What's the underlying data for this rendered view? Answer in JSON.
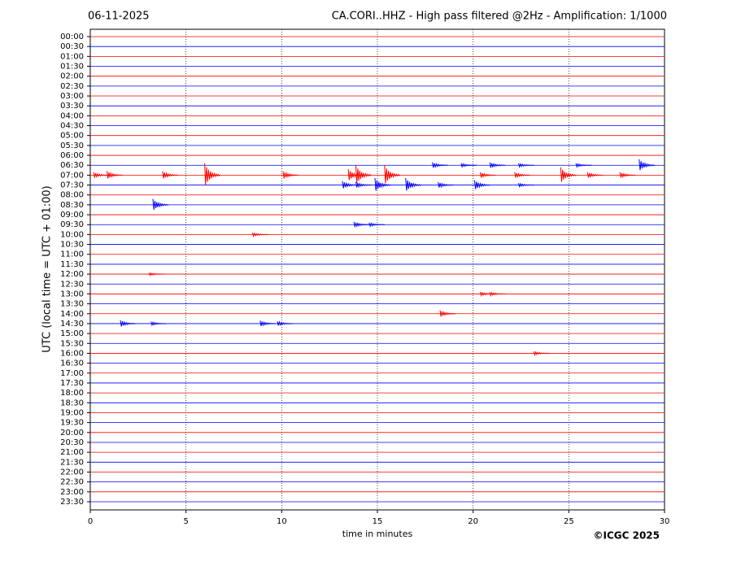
{
  "chart_data": {
    "type": "helicorder",
    "date": "06-11-2025",
    "title": "CA.CORI..HHZ - High pass filtered @2Hz - Amplification: 1/1000",
    "xlabel": "time in minutes",
    "ylabel": "UTC (local time = UTC + 01:00)",
    "copyright": "©ICGC 2025",
    "xlim": [
      0,
      30
    ],
    "xticks": [
      0,
      5,
      10,
      15,
      20,
      25,
      30
    ],
    "grid": true,
    "colors": [
      "#ff0000",
      "#0000ff"
    ],
    "categories": [
      "00:00",
      "00:30",
      "01:00",
      "01:30",
      "02:00",
      "02:30",
      "03:00",
      "03:30",
      "04:00",
      "04:30",
      "05:00",
      "05:30",
      "06:00",
      "06:30",
      "07:00",
      "07:30",
      "08:00",
      "08:30",
      "09:00",
      "09:30",
      "10:00",
      "10:30",
      "11:00",
      "11:30",
      "12:00",
      "12:30",
      "13:00",
      "13:30",
      "14:00",
      "14:30",
      "15:00",
      "15:30",
      "16:00",
      "16:30",
      "17:00",
      "17:30",
      "18:00",
      "18:30",
      "19:00",
      "19:30",
      "20:00",
      "20:30",
      "21:00",
      "21:30",
      "22:00",
      "22:30",
      "23:00",
      "23:30"
    ],
    "bursts": [
      {
        "row": 13,
        "x": 18,
        "amplitude": 0.3
      },
      {
        "row": 13,
        "x": 19.5,
        "amplitude": 0.2
      },
      {
        "row": 13,
        "x": 21,
        "amplitude": 0.3
      },
      {
        "row": 13,
        "x": 22.5,
        "amplitude": 0.2
      },
      {
        "row": 13,
        "x": 25.5,
        "amplitude": 0.2
      },
      {
        "row": 13,
        "x": 28.8,
        "amplitude": 0.6
      },
      {
        "row": 14,
        "x": 0.3,
        "amplitude": 0.3
      },
      {
        "row": 14,
        "x": 1,
        "amplitude": 0.4
      },
      {
        "row": 14,
        "x": 3.9,
        "amplitude": 0.4
      },
      {
        "row": 14,
        "x": 6.1,
        "amplitude": 1.2
      },
      {
        "row": 14,
        "x": 10.2,
        "amplitude": 0.4
      },
      {
        "row": 14,
        "x": 13.6,
        "amplitude": 0.6
      },
      {
        "row": 14,
        "x": 14,
        "amplitude": 1
      },
      {
        "row": 14,
        "x": 15.5,
        "amplitude": 1
      },
      {
        "row": 14,
        "x": 20.5,
        "amplitude": 0.3
      },
      {
        "row": 14,
        "x": 22.3,
        "amplitude": 0.3
      },
      {
        "row": 14,
        "x": 24.7,
        "amplitude": 0.8
      },
      {
        "row": 14,
        "x": 26.1,
        "amplitude": 0.3
      },
      {
        "row": 14,
        "x": 27.8,
        "amplitude": 0.3
      },
      {
        "row": 15,
        "x": 13.3,
        "amplitude": 0.4
      },
      {
        "row": 15,
        "x": 14,
        "amplitude": 0.3
      },
      {
        "row": 15,
        "x": 15,
        "amplitude": 0.7
      },
      {
        "row": 15,
        "x": 16.6,
        "amplitude": 0.7
      },
      {
        "row": 15,
        "x": 18.3,
        "amplitude": 0.3
      },
      {
        "row": 15,
        "x": 20.2,
        "amplitude": 0.5
      },
      {
        "row": 15,
        "x": 22.5,
        "amplitude": 0.2
      },
      {
        "row": 17,
        "x": 3.4,
        "amplitude": 0.6
      },
      {
        "row": 19,
        "x": 13.9,
        "amplitude": 0.3
      },
      {
        "row": 19,
        "x": 14.7,
        "amplitude": 0.2
      },
      {
        "row": 20,
        "x": 8.6,
        "amplitude": 0.2
      },
      {
        "row": 24,
        "x": 3.2,
        "amplitude": 0.15
      },
      {
        "row": 26,
        "x": 20.5,
        "amplitude": 0.2
      },
      {
        "row": 26,
        "x": 21,
        "amplitude": 0.2
      },
      {
        "row": 28,
        "x": 18.4,
        "amplitude": 0.35
      },
      {
        "row": 29,
        "x": 1.7,
        "amplitude": 0.35
      },
      {
        "row": 29,
        "x": 3.3,
        "amplitude": 0.2
      },
      {
        "row": 29,
        "x": 9,
        "amplitude": 0.3
      },
      {
        "row": 29,
        "x": 9.9,
        "amplitude": 0.25
      },
      {
        "row": 32,
        "x": 23.3,
        "amplitude": 0.2
      }
    ]
  }
}
